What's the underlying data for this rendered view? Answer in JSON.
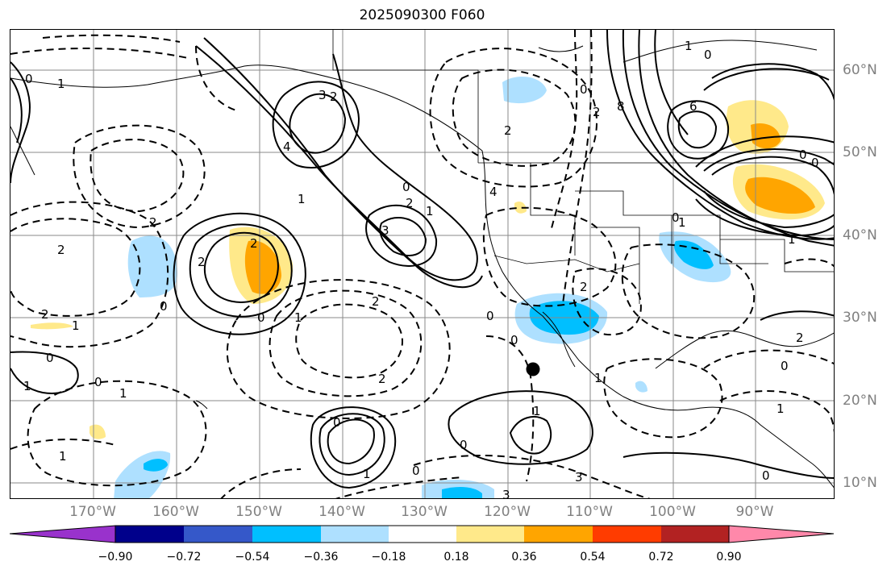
{
  "title": "2025090300 F060",
  "lat_labels": [
    "60°N",
    "50°N",
    "40°N",
    "30°N",
    "20°N",
    "10°N"
  ],
  "lon_labels": [
    "170°W",
    "160°W",
    "150°W",
    "140°W",
    "130°W",
    "120°W",
    "110°W",
    "100°W",
    "90°W"
  ],
  "colorbar": {
    "ticks": [
      "−0.90",
      "−0.72",
      "−0.54",
      "−0.36",
      "−0.18",
      "0.18",
      "0.36",
      "0.54",
      "0.72",
      "0.90"
    ],
    "colors": [
      "#9932cc",
      "#00008b",
      "#3558c9",
      "#00bfff",
      "#aee0ff",
      "#ffffff",
      "#ffe98a",
      "#ffa500",
      "#ff3c00",
      "#b22222",
      "#ff88aa"
    ]
  },
  "contour_labels": [
    "0",
    "1",
    "1",
    "3",
    "2",
    "4",
    "1",
    "0",
    "3",
    "2",
    "1",
    "2",
    "2",
    "2",
    "0",
    "1",
    "2",
    "2",
    "0",
    "2",
    "1",
    "1",
    "0",
    "0",
    "2",
    "1",
    "1",
    "0",
    "0",
    "1",
    "1",
    "0",
    "3",
    "3",
    "2",
    "4",
    "0",
    "1",
    "0",
    "8",
    "6",
    "0",
    "0",
    "0",
    "1",
    "2",
    "0",
    "1",
    "2",
    "0",
    "1",
    "0",
    "2",
    "1",
    "0"
  ],
  "marker": "storm-position"
}
